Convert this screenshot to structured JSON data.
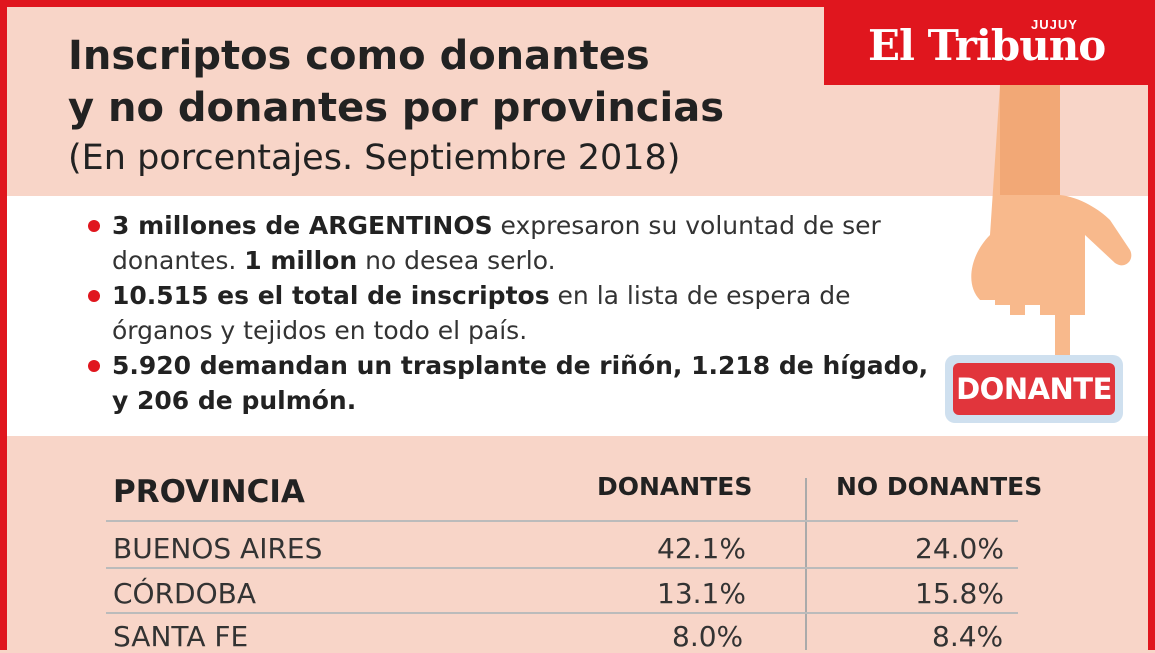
{
  "title": {
    "line1": "Inscriptos como donantes",
    "line2": "y no donantes por provincias",
    "subtitle": "(En porcentajes. Septiembre 2018)"
  },
  "logo": {
    "name": "El Tribuno",
    "edition": "JUJUY"
  },
  "facts": [
    {
      "bold": "3 millones de ARGENTINOS",
      "rest": " expresaron su voluntad de ser donantes. ",
      "bold2": "1 millon",
      "rest2": " no desea serlo."
    },
    {
      "bold": "10.515 es el total de inscriptos",
      "rest": " en la lista de espera de órganos y tejidos en todo el país.",
      "bold2": "",
      "rest2": ""
    },
    {
      "bold": "5.920 demandan un trasplante de riñón, 1.218 de hígado, y 206 de pulmón.",
      "rest": "",
      "bold2": "",
      "rest2": ""
    }
  ],
  "button": {
    "label": "DONANTE"
  },
  "table": {
    "headers": {
      "province": "PROVINCIA",
      "donors": "DONANTES",
      "non_donors": "NO DONANTES"
    },
    "rows": [
      {
        "province": "BUENOS AIRES",
        "donors": "42.1%",
        "non_donors": "24.0%"
      },
      {
        "province": "CÓRDOBA",
        "donors": "13.1%",
        "non_donors": "15.8%"
      },
      {
        "province": "SANTA FE",
        "donors": "8.0%",
        "non_donors": "8.4%"
      }
    ]
  },
  "colors": {
    "accent": "#e0161e",
    "background": "#f8d5c8",
    "button": "#e1353c"
  }
}
